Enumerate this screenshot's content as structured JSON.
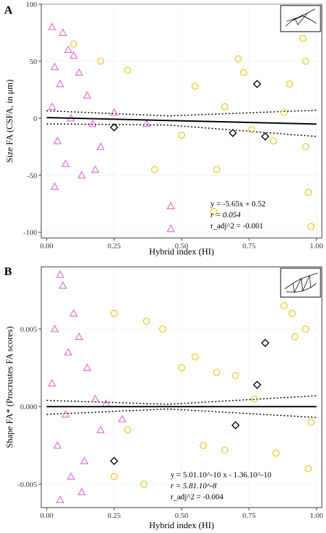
{
  "chart_data": [
    {
      "panel": "A",
      "type": "scatter",
      "xlabel": "Hybrid index (HI)",
      "ylabel": "Size FA (CSFA, in μm)",
      "xlim": [
        -0.02,
        1.02
      ],
      "ylim": [
        -105,
        100
      ],
      "x_ticks": [
        "0.00",
        "0.25",
        "0.50",
        "0.75",
        "1.00"
      ],
      "x_tick_values": [
        0,
        0.25,
        0.5,
        0.75,
        1.0
      ],
      "y_ticks": [
        "-100",
        "-50",
        "0",
        "50",
        "100"
      ],
      "y_tick_values": [
        -100,
        -50,
        0,
        50,
        100
      ],
      "grid": true,
      "colors": {
        "triangle": "#e66bd0",
        "circle": "#e6c619",
        "diamond": "#000000",
        "fit": "#000000",
        "panel_bg": "#ffffff",
        "grid": "#ebebeb"
      },
      "equation": [
        "y = -5.65x + 0.52",
        "r = 0.054",
        "r_adj^2 = -0.001"
      ],
      "fit_line": {
        "slope": -5.65,
        "intercept": 0.52,
        "x_range": [
          0.0,
          1.0
        ]
      },
      "ci_lines": {
        "upper": [
          [
            0.0,
            6.5
          ],
          [
            0.45,
            2.0
          ],
          [
            1.0,
            7.0
          ]
        ],
        "lower": [
          [
            0.0,
            -5.0
          ],
          [
            0.45,
            -6.0
          ],
          [
            1.0,
            -16.0
          ]
        ]
      },
      "diamonds": [
        [
          0.25,
          -8
        ],
        [
          0.69,
          -13
        ],
        [
          0.78,
          30
        ],
        [
          0.81,
          -16
        ]
      ],
      "triangles_sample": [
        [
          0.02,
          80
        ],
        [
          0.06,
          75
        ],
        [
          0.08,
          60
        ],
        [
          0.1,
          55
        ],
        [
          0.03,
          45
        ],
        [
          0.12,
          40
        ],
        [
          0.05,
          30
        ],
        [
          0.15,
          20
        ],
        [
          0.02,
          10
        ],
        [
          0.09,
          0
        ],
        [
          0.17,
          -5
        ],
        [
          0.04,
          -20
        ],
        [
          0.2,
          -25
        ],
        [
          0.07,
          -40
        ],
        [
          0.13,
          -50
        ],
        [
          0.03,
          -60
        ],
        [
          0.18,
          -45
        ],
        [
          0.46,
          -77
        ],
        [
          0.46,
          -97
        ],
        [
          0.37,
          -5
        ],
        [
          0.25,
          5
        ]
      ],
      "circles_sample": [
        [
          0.1,
          65
        ],
        [
          0.2,
          50
        ],
        [
          0.3,
          42
        ],
        [
          0.55,
          28
        ],
        [
          0.71,
          52
        ],
        [
          0.73,
          40
        ],
        [
          0.76,
          -10
        ],
        [
          0.88,
          5
        ],
        [
          0.95,
          70
        ],
        [
          0.96,
          50
        ],
        [
          0.96,
          -25
        ],
        [
          0.97,
          -65
        ],
        [
          0.98,
          -95
        ],
        [
          0.63,
          -45
        ],
        [
          0.62,
          -82
        ],
        [
          0.5,
          -15
        ],
        [
          0.4,
          -45
        ],
        [
          0.84,
          -20
        ],
        [
          0.9,
          30
        ],
        [
          0.66,
          10
        ]
      ]
    },
    {
      "panel": "B",
      "type": "scatter",
      "xlabel": "Hybrid index (HI)",
      "ylabel": "Shape FA* (Procrustes FA scores)",
      "xlim": [
        -0.02,
        1.02
      ],
      "ylim": [
        -0.0065,
        0.009
      ],
      "x_ticks": [
        "0.00",
        "0.25",
        "0.50",
        "0.75",
        "1.00"
      ],
      "x_tick_values": [
        0,
        0.25,
        0.5,
        0.75,
        1.0
      ],
      "y_ticks": [
        "-0.005",
        "0.000",
        "0.005"
      ],
      "y_tick_values": [
        -0.005,
        0.0,
        0.005
      ],
      "grid": true,
      "colors": {
        "triangle": "#e66bd0",
        "circle": "#e6c619",
        "diamond": "#000000",
        "fit": "#000000",
        "panel_bg": "#ffffff",
        "grid": "#ebebeb"
      },
      "equation": [
        "y = 5.01.10^-10 x - 1.36.10^-10",
        "r = 5.81.10^-8",
        "r_adj^2 = -0.004"
      ],
      "fit_line": {
        "slope": 0.0,
        "intercept": 0.0,
        "x_range": [
          0.0,
          1.0
        ]
      },
      "ci_lines": {
        "upper": [
          [
            0.0,
            0.0004
          ],
          [
            0.45,
            0.00015
          ],
          [
            1.0,
            0.0007
          ]
        ],
        "lower": [
          [
            0.0,
            -0.0005
          ],
          [
            0.45,
            -0.00015
          ],
          [
            1.0,
            -0.0007
          ]
        ]
      },
      "diamonds": [
        [
          0.25,
          -0.0035
        ],
        [
          0.7,
          -0.0012
        ],
        [
          0.78,
          0.0014
        ],
        [
          0.81,
          0.0041
        ]
      ],
      "triangles_sample": [
        [
          0.05,
          0.0085
        ],
        [
          0.06,
          0.0078
        ],
        [
          0.1,
          0.006
        ],
        [
          0.03,
          0.005
        ],
        [
          0.12,
          0.0045
        ],
        [
          0.08,
          0.0035
        ],
        [
          0.15,
          0.0025
        ],
        [
          0.02,
          0.0015
        ],
        [
          0.18,
          0.0005
        ],
        [
          0.07,
          -0.0005
        ],
        [
          0.2,
          -0.0015
        ],
        [
          0.04,
          -0.0025
        ],
        [
          0.14,
          -0.0035
        ],
        [
          0.09,
          -0.0045
        ],
        [
          0.05,
          -0.006
        ],
        [
          0.13,
          -0.0055
        ],
        [
          0.22,
          0.0002
        ],
        [
          0.28,
          -0.0008
        ]
      ],
      "circles_sample": [
        [
          0.25,
          0.006
        ],
        [
          0.37,
          0.0055
        ],
        [
          0.43,
          0.005
        ],
        [
          0.88,
          0.0065
        ],
        [
          0.91,
          0.006
        ],
        [
          0.96,
          0.005
        ],
        [
          0.5,
          0.0025
        ],
        [
          0.63,
          0.0022
        ],
        [
          0.7,
          0.002
        ],
        [
          0.66,
          -0.0028
        ],
        [
          0.58,
          -0.0025
        ],
        [
          0.36,
          -0.005
        ],
        [
          0.25,
          -0.0045
        ],
        [
          0.97,
          -0.004
        ],
        [
          0.85,
          -0.003
        ],
        [
          0.98,
          -0.001
        ],
        [
          0.55,
          0.0032
        ],
        [
          0.3,
          -0.0015
        ],
        [
          0.77,
          0.0005
        ],
        [
          0.92,
          0.0045
        ]
      ]
    }
  ]
}
